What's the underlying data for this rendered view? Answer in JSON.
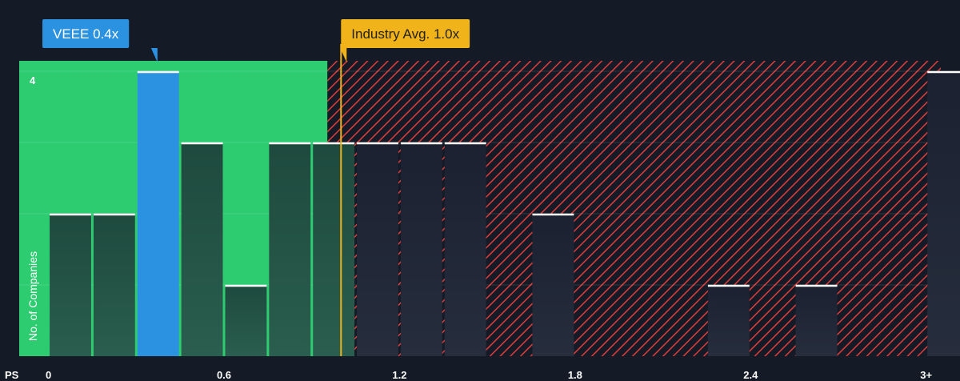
{
  "chart_data": {
    "type": "bar",
    "x_axis_prefix": "PS",
    "ylabel": "No. of Companies",
    "x_ticks": [
      {
        "value": 0,
        "label": "0"
      },
      {
        "value": 0.6,
        "label": "0.6"
      },
      {
        "value": 1.2,
        "label": "1.2"
      },
      {
        "value": 1.8,
        "label": "1.8"
      },
      {
        "value": 2.4,
        "label": "2.4"
      },
      {
        "value": 3.0,
        "label": "3+"
      }
    ],
    "y_ticks": [
      {
        "value": 4,
        "label": "4"
      }
    ],
    "ylim": [
      0,
      4
    ],
    "xlim": [
      -0.1,
      3.05
    ],
    "bin_width": 0.15,
    "bins": [
      {
        "x": 0.0,
        "count": 2
      },
      {
        "x": 0.15,
        "count": 2
      },
      {
        "x": 0.3,
        "count": 4,
        "highlight": true
      },
      {
        "x": 0.45,
        "count": 3
      },
      {
        "x": 0.6,
        "count": 1
      },
      {
        "x": 0.75,
        "count": 3
      },
      {
        "x": 0.9,
        "count": 3
      },
      {
        "x": 1.05,
        "count": 3
      },
      {
        "x": 1.2,
        "count": 3
      },
      {
        "x": 1.35,
        "count": 3
      },
      {
        "x": 1.65,
        "count": 2
      },
      {
        "x": 2.25,
        "count": 1
      },
      {
        "x": 2.55,
        "count": 1
      },
      {
        "x": 3.0,
        "count": 4
      }
    ],
    "company": {
      "label": "VEEE 0.4x",
      "value": 0.4
    },
    "industry_avg": {
      "label": "Industry Avg. 1.0x",
      "value": 1.0
    },
    "colors": {
      "background": "#151b26",
      "fair_zone": "#2ecc71",
      "over_zone_stripe": "#e03c3c",
      "bar_fill": "#1f4a3f",
      "bar_fill_over": "#202634",
      "highlight_bar": "#2a92e0",
      "bar_cap": "#ffffff",
      "industry_line": "#f0b31a",
      "company_callout": "#2a92e0",
      "industry_callout": "#f0b31a"
    }
  }
}
